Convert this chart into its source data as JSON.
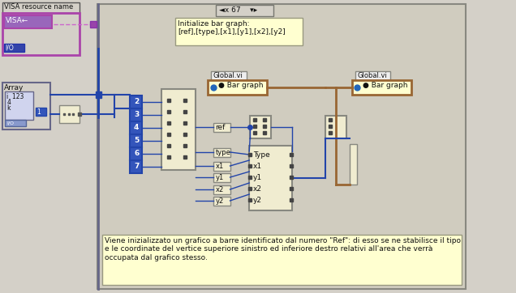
{
  "bg_color": "#d4d0c8",
  "grid_color": "#c0bdb5",
  "panel_bg": "#c8c4bc",
  "panel_border": "#888880",
  "cell_yellow": "#ffffc8",
  "cell_cream": "#f0ecd0",
  "blue": "#2244aa",
  "blue_dark": "#1133aa",
  "brown": "#996633",
  "pink": "#cc66cc",
  "purple_fill": "#8855aa",
  "blue_fill": "#3355bb",
  "title_text": "Initialize bar graph:\n[ref],[type],[x1],[y1],[x2],[y2]",
  "desc_text": "Viene inizializzato un grafico a barre identificato dal numero \"Ref\": di esso se ne stabilisce il tipo\ne le coordinate del vertice superiore sinistro ed inferiore destro relativi all'area che verrà\noccupata dal grafico stesso.",
  "visa_label": "VISA resource name",
  "visa_text": "VISA←",
  "io_text": "I/O",
  "array_label": "Array",
  "counter_text": "◄x 67    ▾▸",
  "global1": "Global.vi",
  "global2": "Global.vi",
  "bargraph1": "● Bar graph",
  "bargraph2": "● Bar graph",
  "numbers": [
    "2",
    "3",
    "4",
    "5",
    "6",
    "7"
  ],
  "params_left": [
    "ref",
    "type",
    "x1",
    "y1",
    "x2",
    "y2"
  ],
  "params_right": [
    "Type",
    "x1",
    "y1",
    "x2",
    "y2"
  ]
}
